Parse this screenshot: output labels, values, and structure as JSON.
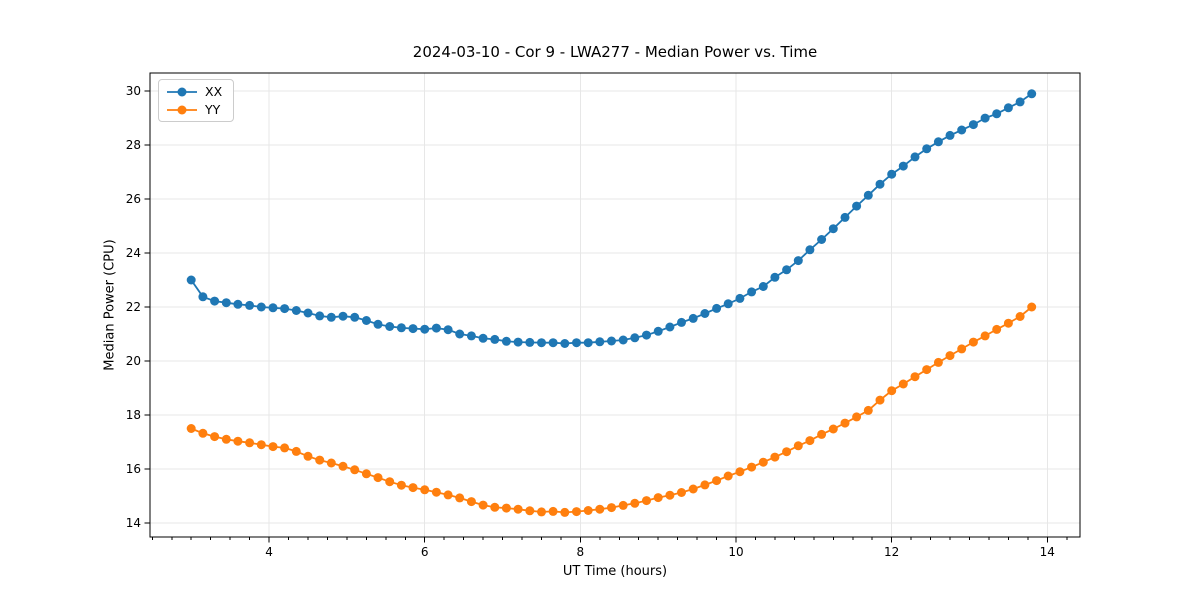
{
  "colors": {
    "series_xx": "#1f77b4",
    "series_yy": "#ff7f0e",
    "grid": "#e7e7e7",
    "spine": "#000000",
    "background": "#ffffff"
  },
  "chart_data": {
    "type": "line",
    "title": "2024-03-10 - Cor 9 - LWA277 - Median Power vs. Time",
    "xlabel": "UT Time (hours)",
    "ylabel": "Median Power (CPU)",
    "xlim": [
      2.47,
      14.42
    ],
    "ylim": [
      13.48,
      30.67
    ],
    "x_ticks": [
      4,
      6,
      8,
      10,
      12,
      14
    ],
    "y_ticks": [
      14,
      16,
      18,
      20,
      22,
      24,
      26,
      28,
      30
    ],
    "x_minor_step": 0.25,
    "grid": true,
    "legend_position": "upper-left",
    "marker": "circle",
    "x": [
      3.0,
      3.15,
      3.3,
      3.45,
      3.6,
      3.75,
      3.9,
      4.05,
      4.2,
      4.35,
      4.5,
      4.65,
      4.8,
      4.95,
      5.1,
      5.25,
      5.4,
      5.55,
      5.7,
      5.85,
      6.0,
      6.15,
      6.3,
      6.45,
      6.6,
      6.75,
      6.9,
      7.05,
      7.2,
      7.35,
      7.5,
      7.65,
      7.8,
      7.95,
      8.1,
      8.25,
      8.4,
      8.55,
      8.7,
      8.85,
      9.0,
      9.15,
      9.3,
      9.45,
      9.6,
      9.75,
      9.9,
      10.05,
      10.2,
      10.35,
      10.5,
      10.65,
      10.8,
      10.95,
      11.1,
      11.25,
      11.4,
      11.55,
      11.7,
      11.85,
      12.0,
      12.15,
      12.3,
      12.45,
      12.6,
      12.75,
      12.9,
      13.05,
      13.2,
      13.35,
      13.5,
      13.65,
      13.8
    ],
    "series": [
      {
        "name": "XX",
        "color": "#1f77b4",
        "values": [
          23.0,
          22.38,
          22.22,
          22.16,
          22.1,
          22.06,
          22.0,
          21.97,
          21.94,
          21.87,
          21.78,
          21.67,
          21.62,
          21.66,
          21.62,
          21.5,
          21.36,
          21.28,
          21.23,
          21.2,
          21.18,
          21.22,
          21.16,
          21.0,
          20.93,
          20.84,
          20.8,
          20.73,
          20.7,
          20.69,
          20.68,
          20.68,
          20.65,
          20.68,
          20.68,
          20.71,
          20.74,
          20.78,
          20.86,
          20.96,
          21.1,
          21.26,
          21.43,
          21.58,
          21.76,
          21.95,
          22.12,
          22.32,
          22.56,
          22.76,
          23.1,
          23.38,
          23.72,
          24.12,
          24.5,
          24.9,
          25.32,
          25.74,
          26.14,
          26.55,
          26.92,
          27.22,
          27.56,
          27.86,
          28.12,
          28.36,
          28.56,
          28.76,
          29.0,
          29.16,
          29.38,
          29.6,
          29.9
        ]
      },
      {
        "name": "YY",
        "color": "#ff7f0e",
        "values": [
          17.5,
          17.32,
          17.2,
          17.1,
          17.03,
          16.97,
          16.9,
          16.83,
          16.78,
          16.65,
          16.47,
          16.33,
          16.22,
          16.1,
          15.97,
          15.82,
          15.68,
          15.53,
          15.4,
          15.31,
          15.23,
          15.14,
          15.04,
          14.93,
          14.79,
          14.66,
          14.58,
          14.55,
          14.51,
          14.45,
          14.41,
          14.43,
          14.39,
          14.42,
          14.46,
          14.51,
          14.57,
          14.65,
          14.73,
          14.83,
          14.94,
          15.03,
          15.13,
          15.26,
          15.41,
          15.57,
          15.74,
          15.9,
          16.07,
          16.25,
          16.44,
          16.64,
          16.86,
          17.05,
          17.28,
          17.48,
          17.7,
          17.93,
          18.17,
          18.55,
          18.9,
          19.15,
          19.42,
          19.68,
          19.95,
          20.2,
          20.45,
          20.7,
          20.93,
          21.17,
          21.4,
          21.65,
          22.0
        ]
      }
    ]
  }
}
